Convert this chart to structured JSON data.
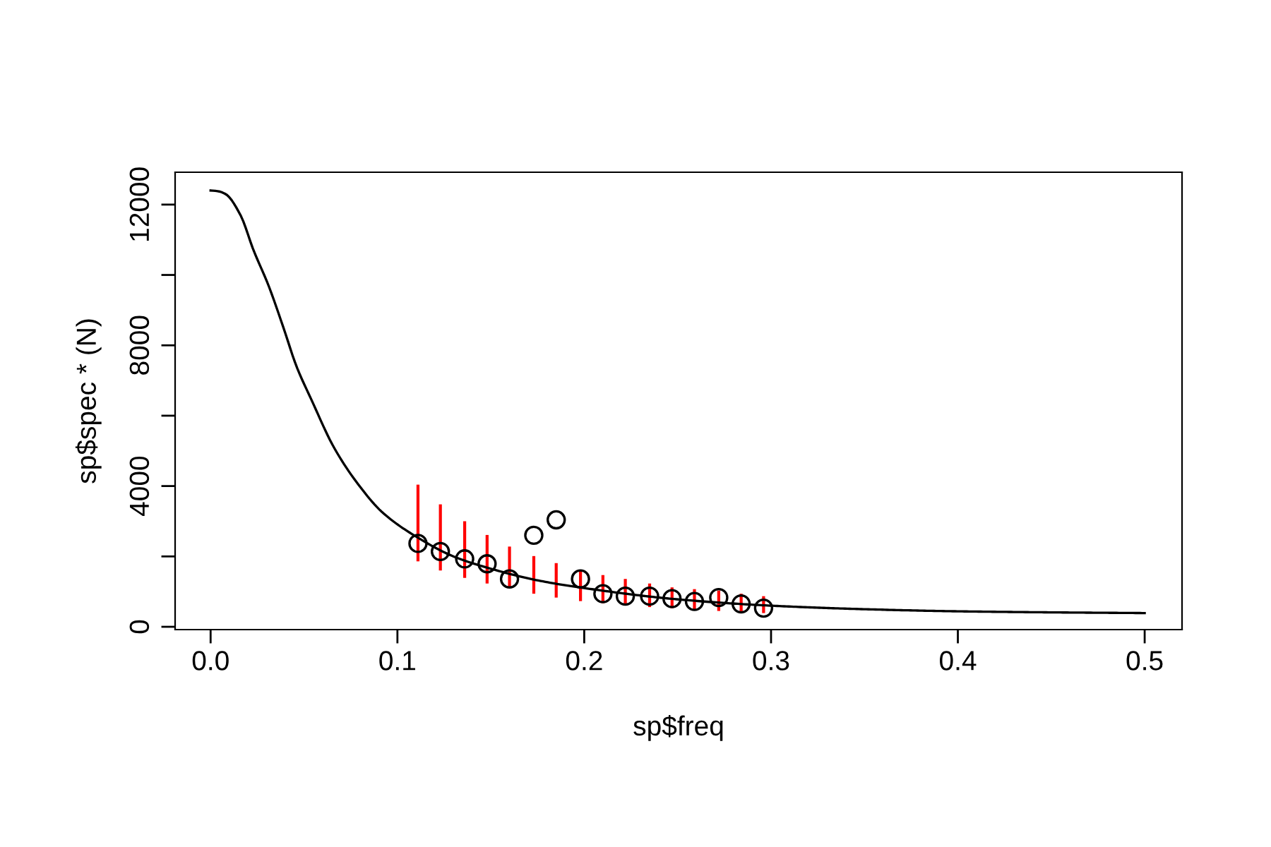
{
  "chart_data": {
    "type": "scatter",
    "xlabel": "sp$freq",
    "ylabel": "sp$spec * (N)",
    "xlim": [
      -0.019,
      0.52
    ],
    "ylim": [
      -80,
      12920
    ],
    "xticks": [
      {
        "value": 0.0,
        "label": "0.0"
      },
      0.1,
      0.2,
      0.3,
      0.4,
      0.5
    ],
    "yticks": [
      0,
      {
        "value": 2000,
        "label": null
      },
      4000,
      {
        "value": 6000,
        "label": null
      },
      8000,
      {
        "value": 10000,
        "label": null
      },
      12000
    ],
    "grid": false,
    "marker": "circle",
    "series": [
      {
        "type": "bar",
        "color": "#ff0000",
        "x": [
          0.111,
          0.123,
          0.136,
          0.148,
          0.16,
          0.173,
          0.185,
          0.198,
          0.21,
          0.222,
          0.235,
          0.247,
          0.259,
          0.272,
          0.284,
          0.296
        ],
        "base": [
          1860,
          1600,
          1390,
          1230,
          1120,
          940,
          830,
          730,
          670,
          610,
          560,
          530,
          490,
          450,
          430,
          390
        ],
        "values": [
          2180,
          1880,
          1610,
          1380,
          1160,
          1070,
          980,
          880,
          800,
          750,
          670,
          590,
          580,
          580,
          510,
          480
        ]
      },
      {
        "color": "#000000",
        "x": [
          0.111,
          0.123,
          0.136,
          0.148,
          0.16,
          0.173,
          0.185,
          0.198,
          0.21,
          0.222,
          0.235,
          0.247,
          0.259,
          0.272,
          0.284,
          0.296
        ],
        "values": [
          2370,
          2140,
          1930,
          1790,
          1360,
          2600,
          3040,
          1360,
          940,
          870,
          870,
          800,
          720,
          830,
          650,
          530
        ]
      },
      {
        "type": "line",
        "color": "#000000",
        "marker": "none",
        "line_style": "solid",
        "x": [
          0.0,
          0.004,
          0.008,
          0.016,
          0.023,
          0.031,
          0.039,
          0.046,
          0.054,
          0.066,
          0.079,
          0.092,
          0.112,
          0.13,
          0.15,
          0.175,
          0.2,
          0.25,
          0.3,
          0.35,
          0.4,
          0.45,
          0.5
        ],
        "values": [
          12400,
          12380,
          12300,
          11700,
          10700,
          9700,
          8500,
          7400,
          6450,
          5100,
          4050,
          3250,
          2500,
          2000,
          1650,
          1320,
          1100,
          780,
          600,
          500,
          440,
          410,
          390
        ]
      }
    ]
  }
}
